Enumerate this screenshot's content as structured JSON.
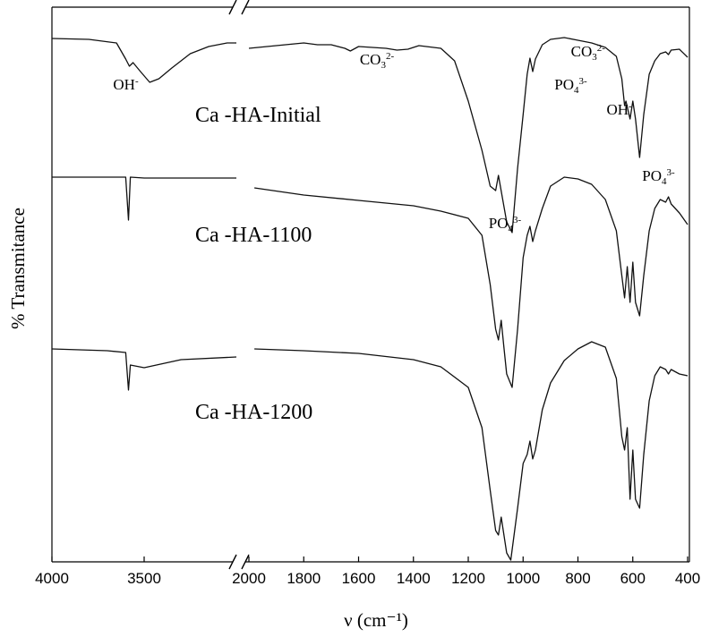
{
  "chart_data": {
    "type": "line",
    "title": "",
    "xlabel": "ν (cm⁻¹)",
    "ylabel": "% Transmitance",
    "x_axis_break": {
      "left_segment_range": [
        4000,
        3000
      ],
      "right_segment_range": [
        2000,
        400
      ]
    },
    "x_ticks_left": [
      "4000",
      "3500"
    ],
    "x_ticks_right": [
      "2000",
      "1800",
      "1600",
      "1400",
      "1200",
      "1000",
      "800",
      "600",
      "400"
    ],
    "y_ticks_shown": false,
    "grid": false,
    "legend": "none",
    "line_color": "#111111",
    "series": [
      {
        "name": "Ca -HA-Initial",
        "baseline": 35,
        "points": [
          [
            4000,
            35
          ],
          [
            3800,
            36
          ],
          [
            3650,
            40
          ],
          [
            3600,
            58
          ],
          [
            3580,
            66
          ],
          [
            3560,
            62
          ],
          [
            3520,
            72
          ],
          [
            3470,
            84
          ],
          [
            3420,
            80
          ],
          [
            3350,
            68
          ],
          [
            3250,
            52
          ],
          [
            3150,
            44
          ],
          [
            3050,
            40
          ],
          [
            3000,
            40
          ],
          [
            2000,
            46
          ],
          [
            1900,
            43
          ],
          [
            1800,
            40
          ],
          [
            1750,
            42
          ],
          [
            1700,
            42
          ],
          [
            1650,
            46
          ],
          [
            1630,
            49
          ],
          [
            1600,
            44
          ],
          [
            1550,
            45
          ],
          [
            1500,
            46
          ],
          [
            1460,
            48
          ],
          [
            1420,
            47
          ],
          [
            1380,
            43
          ],
          [
            1300,
            46
          ],
          [
            1250,
            60
          ],
          [
            1200,
            105
          ],
          [
            1150,
            160
          ],
          [
            1120,
            200
          ],
          [
            1100,
            205
          ],
          [
            1090,
            188
          ],
          [
            1060,
            240
          ],
          [
            1040,
            252
          ],
          [
            1020,
            180
          ],
          [
            1000,
            120
          ],
          [
            985,
            75
          ],
          [
            975,
            57
          ],
          [
            965,
            72
          ],
          [
            955,
            58
          ],
          [
            930,
            42
          ],
          [
            900,
            36
          ],
          [
            850,
            34
          ],
          [
            800,
            37
          ],
          [
            750,
            40
          ],
          [
            700,
            45
          ],
          [
            660,
            55
          ],
          [
            640,
            80
          ],
          [
            630,
            110
          ],
          [
            625,
            105
          ],
          [
            610,
            125
          ],
          [
            600,
            105
          ],
          [
            590,
            125
          ],
          [
            575,
            168
          ],
          [
            560,
            120
          ],
          [
            540,
            75
          ],
          [
            520,
            60
          ],
          [
            500,
            52
          ],
          [
            480,
            50
          ],
          [
            470,
            53
          ],
          [
            460,
            48
          ],
          [
            430,
            47
          ],
          [
            400,
            56
          ]
        ]
      },
      {
        "name": "Ca -HA-1100",
        "baseline": 190,
        "points": [
          [
            4000,
            190
          ],
          [
            3700,
            190
          ],
          [
            3600,
            190
          ],
          [
            3585,
            238
          ],
          [
            3575,
            190
          ],
          [
            3500,
            191
          ],
          [
            3300,
            191
          ],
          [
            3000,
            191
          ],
          [
            1980,
            202
          ],
          [
            1800,
            210
          ],
          [
            1600,
            216
          ],
          [
            1400,
            222
          ],
          [
            1300,
            228
          ],
          [
            1200,
            236
          ],
          [
            1150,
            255
          ],
          [
            1120,
            310
          ],
          [
            1100,
            360
          ],
          [
            1090,
            372
          ],
          [
            1080,
            350
          ],
          [
            1070,
            380
          ],
          [
            1060,
            410
          ],
          [
            1040,
            425
          ],
          [
            1020,
            360
          ],
          [
            1000,
            280
          ],
          [
            985,
            255
          ],
          [
            975,
            245
          ],
          [
            965,
            262
          ],
          [
            955,
            250
          ],
          [
            930,
            225
          ],
          [
            900,
            200
          ],
          [
            850,
            190
          ],
          [
            800,
            192
          ],
          [
            750,
            198
          ],
          [
            700,
            215
          ],
          [
            660,
            250
          ],
          [
            640,
            300
          ],
          [
            630,
            325
          ],
          [
            620,
            290
          ],
          [
            610,
            330
          ],
          [
            600,
            285
          ],
          [
            590,
            330
          ],
          [
            575,
            345
          ],
          [
            560,
            300
          ],
          [
            540,
            250
          ],
          [
            520,
            225
          ],
          [
            500,
            215
          ],
          [
            480,
            218
          ],
          [
            470,
            212
          ],
          [
            460,
            220
          ],
          [
            430,
            230
          ],
          [
            400,
            243
          ]
        ]
      },
      {
        "name": "Ca -HA-1200",
        "baseline": 382,
        "points": [
          [
            4000,
            382
          ],
          [
            3700,
            384
          ],
          [
            3600,
            386
          ],
          [
            3585,
            428
          ],
          [
            3575,
            400
          ],
          [
            3500,
            403
          ],
          [
            3300,
            394
          ],
          [
            3000,
            391
          ],
          [
            1980,
            382
          ],
          [
            1800,
            384
          ],
          [
            1600,
            387
          ],
          [
            1400,
            394
          ],
          [
            1300,
            402
          ],
          [
            1200,
            425
          ],
          [
            1150,
            470
          ],
          [
            1120,
            540
          ],
          [
            1100,
            585
          ],
          [
            1090,
            590
          ],
          [
            1080,
            570
          ],
          [
            1060,
            610
          ],
          [
            1045,
            618
          ],
          [
            1020,
            560
          ],
          [
            1000,
            510
          ],
          [
            985,
            500
          ],
          [
            975,
            485
          ],
          [
            965,
            505
          ],
          [
            955,
            495
          ],
          [
            930,
            450
          ],
          [
            900,
            420
          ],
          [
            850,
            395
          ],
          [
            800,
            382
          ],
          [
            750,
            374
          ],
          [
            700,
            380
          ],
          [
            660,
            415
          ],
          [
            640,
            480
          ],
          [
            630,
            495
          ],
          [
            620,
            470
          ],
          [
            610,
            550
          ],
          [
            600,
            495
          ],
          [
            590,
            550
          ],
          [
            575,
            560
          ],
          [
            560,
            500
          ],
          [
            540,
            440
          ],
          [
            520,
            412
          ],
          [
            500,
            402
          ],
          [
            480,
            405
          ],
          [
            470,
            410
          ],
          [
            460,
            405
          ],
          [
            430,
            410
          ],
          [
            400,
            412
          ]
        ]
      }
    ],
    "annotations": [
      {
        "base": "OH",
        "sup": "-",
        "sub": "",
        "x": 3600,
        "ylevel": 100
      },
      {
        "base": "CO",
        "sub": "3",
        "sup": "2-",
        "x": 1550,
        "ylevel": 72
      },
      {
        "base": "CO",
        "sub": "3",
        "sup": "2-",
        "x": 780,
        "ylevel": 63
      },
      {
        "base": "PO",
        "sub": "4",
        "sup": "3-",
        "x": 840,
        "ylevel": 100
      },
      {
        "base": "OH",
        "sup": "-",
        "sub": "",
        "x": 650,
        "ylevel": 128
      },
      {
        "base": "PO",
        "sub": "4",
        "sup": "3-",
        "x": 520,
        "ylevel": 202
      },
      {
        "base": "PO",
        "sub": "4",
        "sup": "3-",
        "x": 1080,
        "ylevel": 255
      }
    ],
    "sample_labels": [
      {
        "text": "Ca -HA-Initial",
        "x": 2470,
        "ylevel": 138
      },
      {
        "text": "Ca -HA-1100",
        "x": 2470,
        "ylevel": 272
      },
      {
        "text": "Ca -HA-1200",
        "x": 2470,
        "ylevel": 470
      }
    ]
  }
}
